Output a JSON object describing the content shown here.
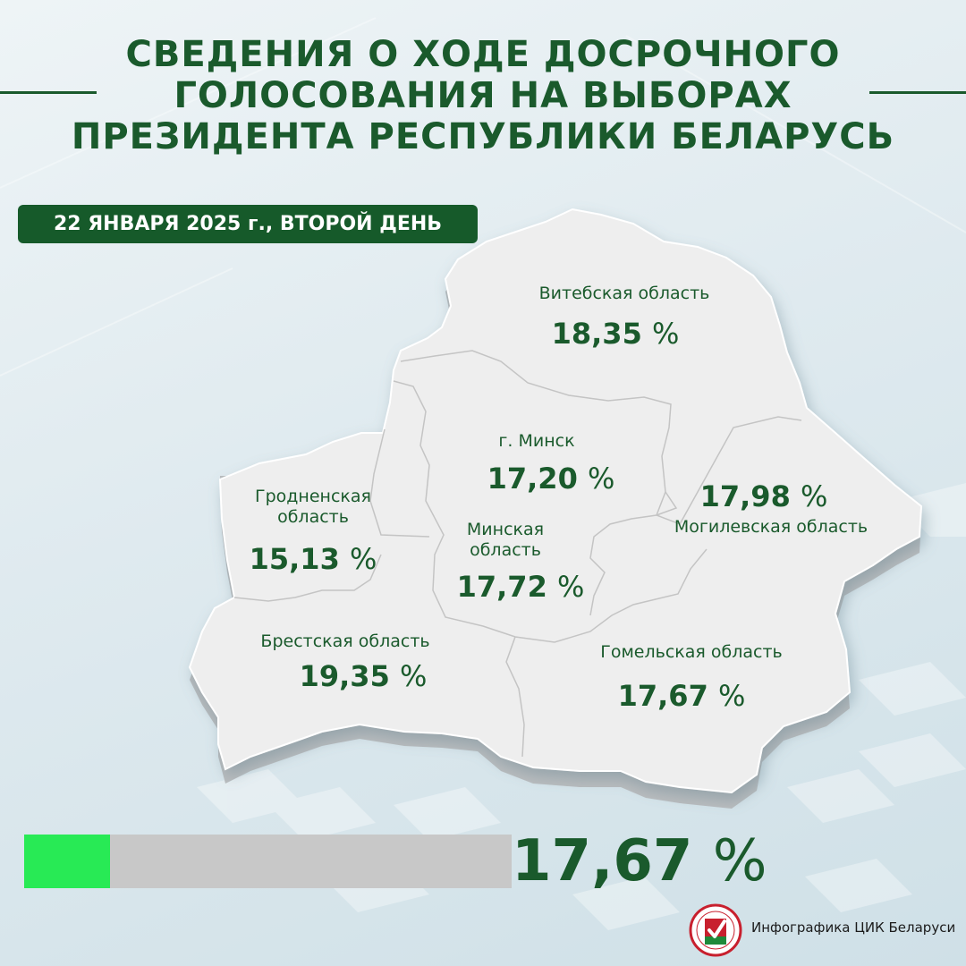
{
  "header": {
    "title_lines": [
      "СВЕДЕНИЯ О ХОДЕ ДОСРОЧНОГО",
      "ГОЛОСОВАНИЯ НА ВЫБОРАХ",
      "ПРЕЗИДЕНТА РЕСПУБЛИКИ БЕЛАРУСЬ"
    ],
    "date_badge": "22 ЯНВАРЯ 2025 г., ВТОРОЙ ДЕНЬ"
  },
  "regions": {
    "vitebsk": {
      "name": "Витебская область",
      "value": "18,35",
      "unit": "%"
    },
    "minsk_city": {
      "name": "г. Минск",
      "value": "17,20",
      "unit": "%"
    },
    "mogilev": {
      "name": "Могилевская область",
      "value": "17,98",
      "unit": "%"
    },
    "grodno": {
      "name_lines": [
        "Гродненская",
        "область"
      ],
      "value": "15,13",
      "unit": "%"
    },
    "minsk_region": {
      "name_lines": [
        "Минская",
        "область"
      ],
      "value": "17,72",
      "unit": "%"
    },
    "brest": {
      "name": "Брестская область",
      "value": "19,35",
      "unit": "%"
    },
    "gomel": {
      "name": "Гомельская область",
      "value": "17,67",
      "unit": "%"
    }
  },
  "total": {
    "value": "17,67",
    "unit": "%",
    "progress_percent": 17.67
  },
  "footer": {
    "text": "Инфографика ЦИК Беларуси"
  },
  "colors": {
    "primary_green": "#1a5a2c",
    "progress_fill": "#28ea55",
    "progress_track": "#c8c8c8",
    "map_fill": "#eeeeee",
    "emblem_red": "#c8202e"
  },
  "icons": [
    "cik-emblem-icon"
  ]
}
